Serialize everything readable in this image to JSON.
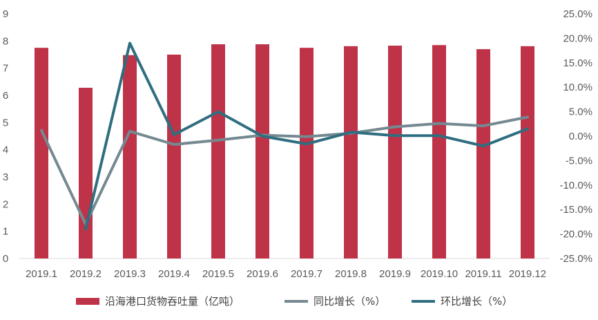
{
  "chart_data": {
    "type": "bar+line",
    "categories": [
      "2019.1",
      "2019.2",
      "2019.3",
      "2019.4",
      "2019.5",
      "2019.6",
      "2019.7",
      "2019.8",
      "2019.9",
      "2019.10",
      "2019.11",
      "2019.12"
    ],
    "series": [
      {
        "name": "沿海港口货物吞吐量（亿吨）",
        "type": "bar",
        "axis": "left",
        "color": "#BE3347",
        "values": [
          7.75,
          6.28,
          7.48,
          7.5,
          7.88,
          7.88,
          7.75,
          7.81,
          7.83,
          7.85,
          7.7,
          7.81
        ]
      },
      {
        "name": "同比增长（%）",
        "type": "line",
        "axis": "right",
        "color": "#748991",
        "values": [
          1.2,
          -18.0,
          1.0,
          -1.7,
          -0.8,
          0.2,
          -0.1,
          0.6,
          1.9,
          2.6,
          2.1,
          3.9
        ]
      },
      {
        "name": "环比增长（%）",
        "type": "line",
        "axis": "right",
        "color": "#2F6E80",
        "values": [
          null,
          -19.0,
          19.0,
          0.3,
          5.0,
          0.0,
          -1.6,
          0.8,
          0.1,
          0.1,
          -2.0,
          1.5
        ]
      }
    ],
    "y_left": {
      "min": 0,
      "max": 9,
      "ticks": [
        "0",
        "1",
        "2",
        "3",
        "4",
        "5",
        "6",
        "7",
        "8",
        "9"
      ]
    },
    "y_right": {
      "min": -25,
      "max": 25,
      "ticks": [
        "-25.0%",
        "-20.0%",
        "-15.0%",
        "-10.0%",
        "-5.0%",
        "0.0%",
        "5.0%",
        "10.0%",
        "15.0%",
        "20.0%",
        "25.0%"
      ]
    },
    "legend_position": "bottom",
    "grid": false
  }
}
